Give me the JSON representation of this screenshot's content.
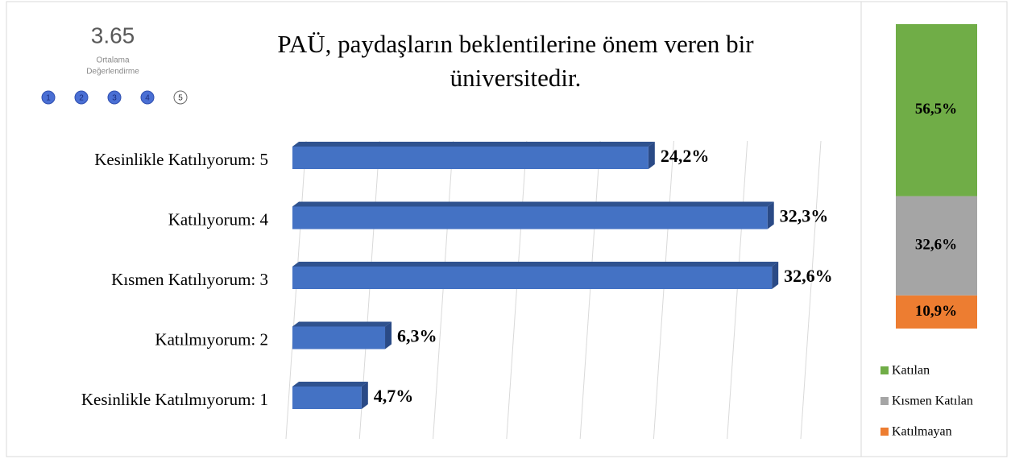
{
  "rating_widget": {
    "score": 3.65,
    "label_lines": [
      "Ortalama",
      "Değerlendirme"
    ],
    "levels": [
      1,
      2,
      3,
      4,
      5
    ],
    "filled": 4
  },
  "chart_data": [
    {
      "type": "bar",
      "orientation": "horizontal",
      "title_lines": [
        "PAÜ, paydaşların beklentilerine önem veren bir",
        "üniversitedir."
      ],
      "categories": [
        "Kesinlikle Katılıyorum: 5",
        "Katılıyorum: 4",
        "Kısmen Katılıyorum: 3",
        "Katılmıyorum: 2",
        "Kesinlikle Katılmıyorum: 1"
      ],
      "values": [
        24.2,
        32.3,
        32.6,
        6.3,
        4.7
      ],
      "value_labels": [
        "24,2%",
        "32,3%",
        "32,6%",
        "6,3%",
        "4,7%"
      ],
      "color": "#4472c4",
      "xlim": [
        0,
        35
      ],
      "xticks": [
        0,
        5,
        10,
        15,
        20,
        25,
        30,
        35
      ],
      "grid": true
    },
    {
      "type": "stacked_bar",
      "ylim": [
        0,
        100
      ],
      "legend": "bottom",
      "series": [
        {
          "name": "Katılan",
          "color": "#70ad47",
          "values": [
            56.5
          ],
          "value_labels": [
            "56,5%"
          ]
        },
        {
          "name": "Kısmen Katılan",
          "color": "#a5a5a5",
          "values": [
            32.6
          ],
          "value_labels": [
            "32,6%"
          ]
        },
        {
          "name": "Katılmayan",
          "color": "#ed7d31",
          "values": [
            10.9
          ],
          "value_labels": [
            "10,9%"
          ]
        }
      ]
    }
  ]
}
